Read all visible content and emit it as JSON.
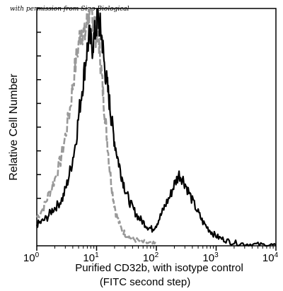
{
  "credit": "with permission from Sino Biological",
  "chart_data": {
    "type": "line",
    "title": "",
    "ylabel": "Relative Cell Number",
    "xlabel_lines": [
      "Purified  CD32b,  with isotype control",
      "(FITC second step)"
    ],
    "x_scale": "log",
    "xlim": [
      1,
      10000
    ],
    "ylim": [
      0,
      100
    ],
    "x_ticks": [
      {
        "base": "10",
        "exp": "0",
        "value": 1
      },
      {
        "base": "10",
        "exp": "1",
        "value": 10
      },
      {
        "base": "10",
        "exp": "2",
        "value": 100
      },
      {
        "base": "10",
        "exp": "3",
        "value": 1000
      },
      {
        "base": "10",
        "exp": "4",
        "value": 10000
      }
    ],
    "y_ticks": [
      10,
      20,
      30,
      40,
      50,
      60,
      70,
      80,
      90,
      100
    ],
    "grid": false,
    "series": [
      {
        "color": "#999999",
        "style": "dashed",
        "x": [
          1.0,
          1.3,
          1.6,
          2.0,
          2.5,
          3.0,
          3.6,
          4.2,
          5.0,
          5.6,
          6.3,
          7.0,
          7.6,
          8.2,
          9.0,
          9.7,
          10.5,
          11.3,
          12.3,
          13.5,
          15.0,
          16.5,
          18.5,
          21.0,
          25.0,
          30.0,
          36.0,
          45.0,
          60.0,
          80.0,
          100.0
        ],
        "y": [
          12,
          16,
          22,
          28,
          36,
          46,
          58,
          72,
          85,
          92,
          88,
          95,
          100,
          98,
          96,
          90,
          92,
          82,
          70,
          58,
          45,
          33,
          22,
          14,
          8,
          5,
          3.5,
          2.5,
          1.5,
          1,
          0.5
        ]
      },
      {
        "color": "#000000",
        "style": "solid",
        "x": [
          1.0,
          1.2,
          1.5,
          1.8,
          2.2,
          2.7,
          3.2,
          3.8,
          4.5,
          5.2,
          6.0,
          6.7,
          7.5,
          8.5,
          9.5,
          10.5,
          11.5,
          12.5,
          13.5,
          15.0,
          16.5,
          18.0,
          20.0,
          23.0,
          26.0,
          30.0,
          35.0,
          42.0,
          50.0,
          60.0,
          72.0,
          85.0,
          100.0,
          120.0,
          140.0,
          170.0,
          200.0,
          240.0,
          280.0,
          330.0,
          400.0,
          500.0,
          600.0,
          750.0,
          900.0,
          1100.0,
          1400.0,
          1800.0,
          2500.0,
          3500.0,
          5000.0,
          7000.0,
          10000.0
        ],
        "y": [
          9,
          10,
          12,
          15,
          17,
          20,
          26,
          34,
          44,
          58,
          70,
          80,
          88,
          84,
          90,
          96,
          92,
          86,
          76,
          68,
          60,
          52,
          44,
          36,
          30,
          24,
          19,
          15,
          12,
          10,
          8,
          7,
          9,
          13,
          17,
          21,
          26,
          30,
          28,
          24,
          19,
          14,
          10,
          7,
          5,
          3.5,
          2.5,
          1.5,
          1,
          0.7,
          0.5,
          0.3,
          0.3
        ]
      }
    ]
  }
}
